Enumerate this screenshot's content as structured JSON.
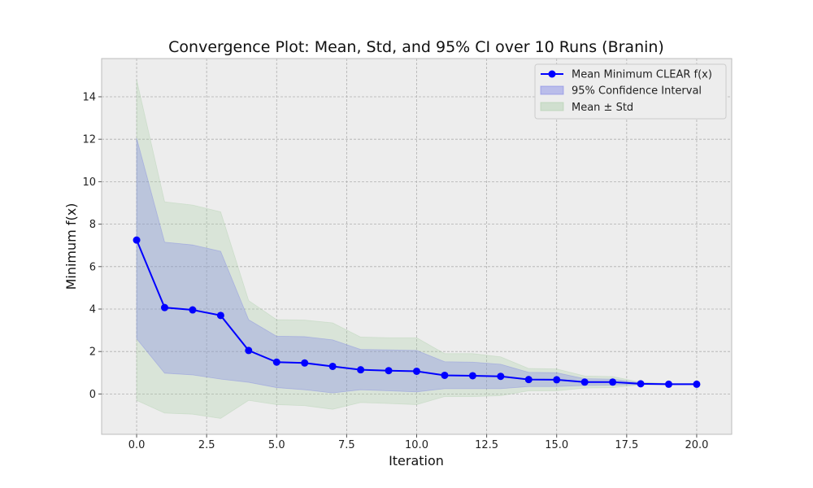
{
  "chart_data": {
    "type": "line",
    "title": "Convergence Plot: Mean, Std, and 95% CI over 10 Runs (Branin)",
    "xlabel": "Iteration",
    "ylabel": "Minimum f(x)",
    "xlim": [
      -1.25,
      21.25
    ],
    "ylim": [
      -1.9,
      15.8
    ],
    "x_ticks": [
      0.0,
      2.5,
      5.0,
      7.5,
      10.0,
      12.5,
      15.0,
      17.5,
      20.0
    ],
    "x_tick_labels": [
      "0.0",
      "2.5",
      "5.0",
      "7.5",
      "10.0",
      "12.5",
      "15.0",
      "17.5",
      "20.0"
    ],
    "y_ticks": [
      0,
      2,
      4,
      6,
      8,
      10,
      12,
      14
    ],
    "y_tick_labels": [
      "0",
      "2",
      "4",
      "6",
      "8",
      "10",
      "12",
      "14"
    ],
    "grid": true,
    "legend_position": "top-right",
    "x": [
      0,
      1,
      2,
      3,
      4,
      5,
      6,
      7,
      8,
      9,
      10,
      11,
      12,
      13,
      14,
      15,
      16,
      17,
      18,
      19,
      20
    ],
    "series": [
      {
        "name": "Mean Minimum CLEAR f(x)",
        "kind": "line",
        "color": "#0000ff",
        "values": [
          7.25,
          4.07,
          3.96,
          3.7,
          2.05,
          1.5,
          1.46,
          1.3,
          1.14,
          1.1,
          1.07,
          0.88,
          0.86,
          0.83,
          0.68,
          0.67,
          0.56,
          0.56,
          0.48,
          0.46,
          0.46
        ]
      },
      {
        "name": "95% Confidence Interval",
        "kind": "band",
        "color": "#6f76e6",
        "lower": [
          2.6,
          0.98,
          0.9,
          0.7,
          0.55,
          0.3,
          0.2,
          0.05,
          0.2,
          0.15,
          0.1,
          0.25,
          0.25,
          0.25,
          0.35,
          0.35,
          0.4,
          0.42,
          0.45,
          0.45,
          0.45
        ],
        "upper": [
          12.05,
          7.15,
          7.02,
          6.72,
          3.5,
          2.72,
          2.7,
          2.55,
          2.1,
          2.08,
          2.05,
          1.52,
          1.5,
          1.4,
          1.02,
          1.0,
          0.72,
          0.7,
          0.52,
          0.48,
          0.48
        ]
      },
      {
        "name": "Mean ± Std",
        "kind": "band",
        "color": "#a6cba3",
        "lower": [
          -0.3,
          -0.9,
          -0.95,
          -1.15,
          -0.3,
          -0.5,
          -0.55,
          -0.72,
          -0.4,
          -0.45,
          -0.5,
          -0.12,
          -0.12,
          -0.08,
          0.15,
          0.15,
          0.28,
          0.3,
          0.43,
          0.44,
          0.44
        ],
        "upper": [
          14.8,
          9.05,
          8.9,
          8.58,
          4.4,
          3.5,
          3.48,
          3.35,
          2.68,
          2.65,
          2.65,
          1.9,
          1.9,
          1.75,
          1.2,
          1.18,
          0.85,
          0.82,
          0.55,
          0.5,
          0.5
        ]
      }
    ],
    "colors": {
      "plot_background": "#ededed",
      "grid": "#b0b0b0",
      "frame": "#bcbcbc"
    }
  }
}
